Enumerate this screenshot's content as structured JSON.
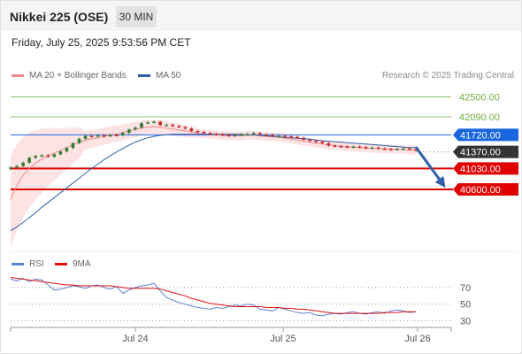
{
  "header": {
    "title": "Nikkei 225 (OSE)",
    "timeframe": "30 MIN"
  },
  "datetime": "Friday, July 25, 2025 9:53:56 PM CET",
  "legend": [
    {
      "label": "MA 20 + Bollinger Bands",
      "color": "#f08b8b"
    },
    {
      "label": "MA 50",
      "color": "#2f5fa8"
    }
  ],
  "credit": "Research © 2025 Trading Central",
  "rsi_legend": [
    {
      "label": "RSI",
      "color": "#5b84d6"
    },
    {
      "label": "9MA",
      "color": "#e01010"
    }
  ],
  "colors": {
    "resistance": "#8dc26f",
    "pivot": "#1a66e0",
    "support": "#e00000",
    "current": "#333333",
    "candle_up": "#2e7d32",
    "candle_down": "#c62828"
  },
  "chart_data": [
    {
      "type": "line",
      "title": "",
      "price_ylim": [
        39400,
        42800
      ],
      "x_tick_labels": [
        "Jul 24",
        "Jul 25",
        "Jul 26"
      ],
      "levels": [
        {
          "label": "42500.00",
          "value": 42500,
          "kind": "resistance"
        },
        {
          "label": "42090.00",
          "value": 42090,
          "kind": "resistance"
        },
        {
          "label": "41720.00",
          "value": 41720,
          "kind": "pivot"
        },
        {
          "label": "41370.00",
          "value": 41370,
          "kind": "current"
        },
        {
          "label": "41030.00",
          "value": 41030,
          "kind": "support"
        },
        {
          "label": "40600.00",
          "value": 40600,
          "kind": "support"
        }
      ],
      "close": [
        41050,
        41080,
        41150,
        41250,
        41290,
        41300,
        41270,
        41320,
        41380,
        41450,
        41550,
        41640,
        41700,
        41690,
        41710,
        41690,
        41720,
        41710,
        41760,
        41830,
        41870,
        41960,
        41980,
        41990,
        41920,
        41930,
        41900,
        41880,
        41850,
        41800,
        41780,
        41760,
        41740,
        41730,
        41720,
        41700,
        41720,
        41730,
        41740,
        41760,
        41730,
        41720,
        41700,
        41700,
        41690,
        41680,
        41660,
        41620,
        41600,
        41580,
        41550,
        41500,
        41490,
        41480,
        41470,
        41480,
        41470,
        41450,
        41460,
        41440,
        41430,
        41420,
        41430,
        41440,
        41420,
        41410
      ],
      "series": [
        {
          "name": "MA 20",
          "values": [
            40400,
            40680,
            40890,
            41030,
            41140,
            41220,
            41290,
            41350,
            41400,
            41460,
            41520,
            41570,
            41610,
            41640,
            41660,
            41690,
            41720,
            41740,
            41770,
            41800,
            41830,
            41860,
            41880,
            41890,
            41880,
            41860,
            41840,
            41820,
            41800,
            41780,
            41760,
            41740,
            41730,
            41720,
            41710,
            41700,
            41700,
            41700,
            41710,
            41710,
            41700,
            41690,
            41680,
            41670,
            41650,
            41630,
            41610,
            41590,
            41570,
            41550,
            41530,
            41510,
            41500,
            41490,
            41480,
            41470,
            41460,
            41450,
            41440,
            41440,
            41430,
            41430,
            41420,
            41420,
            41410,
            41400
          ]
        },
        {
          "name": "MA 50",
          "values": [
            39750,
            39830,
            39920,
            40020,
            40120,
            40230,
            40330,
            40430,
            40530,
            40630,
            40730,
            40830,
            40930,
            41030,
            41120,
            41210,
            41290,
            41370,
            41440,
            41510,
            41570,
            41620,
            41660,
            41690,
            41710,
            41720,
            41730,
            41730,
            41730,
            41730,
            41730,
            41730,
            41730,
            41730,
            41730,
            41730,
            41730,
            41730,
            41720,
            41720,
            41710,
            41700,
            41690,
            41680,
            41670,
            41660,
            41650,
            41640,
            41630,
            41610,
            41600,
            41590,
            41580,
            41570,
            41560,
            41550,
            41540,
            41530,
            41520,
            41510,
            41500,
            41490,
            41480,
            41470,
            41460,
            41460
          ]
        }
      ],
      "forecast_arrow": {
        "from": 41470,
        "to": 40650
      }
    },
    {
      "type": "line",
      "title": "RSI",
      "ylim": [
        20,
        90
      ],
      "y_tick_labels": [
        "70",
        "50",
        "30"
      ],
      "y_ticks": [
        70,
        50,
        30
      ],
      "series": [
        {
          "name": "RSI",
          "values": [
            80,
            78,
            81,
            77,
            80,
            79,
            73,
            67,
            68,
            70,
            72,
            71,
            69,
            72,
            73,
            70,
            68,
            71,
            63,
            67,
            70,
            72,
            73,
            75,
            66,
            58,
            55,
            52,
            50,
            48,
            46,
            45,
            44,
            46,
            45,
            47,
            49,
            48,
            50,
            49,
            44,
            43,
            42,
            46,
            44,
            42,
            40,
            39,
            40,
            37,
            36,
            38,
            39,
            38,
            40,
            41,
            39,
            38,
            40,
            41,
            39,
            42,
            43,
            42,
            40,
            41
          ]
        },
        {
          "name": "9MA",
          "values": [
            82,
            81,
            80,
            79,
            78,
            77,
            76,
            75,
            74,
            73,
            73,
            72,
            72,
            72,
            72,
            72,
            72,
            71,
            70,
            69,
            69,
            69,
            69,
            69,
            68,
            66,
            64,
            62,
            60,
            57,
            55,
            53,
            51,
            50,
            49,
            48,
            47,
            47,
            47,
            47,
            47,
            46,
            46,
            46,
            45,
            45,
            44,
            44,
            43,
            42,
            41,
            40,
            39,
            39,
            39,
            39,
            39,
            39,
            39,
            39,
            40,
            40,
            40,
            41,
            41,
            41
          ]
        }
      ]
    }
  ]
}
